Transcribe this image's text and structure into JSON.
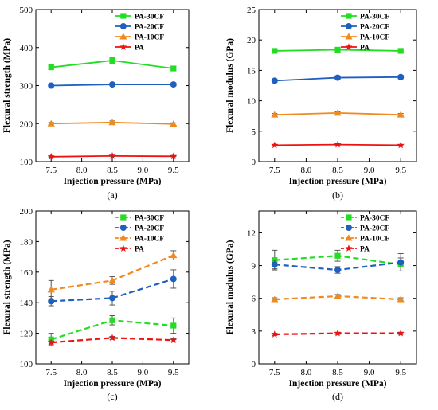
{
  "chart_data": [
    {
      "type": "line",
      "caption": "(a)",
      "xlabel": "Injection pressure (MPa)",
      "ylabel": "Flexural strength (MPa)",
      "xlim": [
        7.25,
        9.75
      ],
      "ylim": [
        100,
        500
      ],
      "xticks": [
        7.5,
        8.0,
        8.5,
        9.0,
        9.5
      ],
      "xtick_labels": [
        "7.5",
        "8.0",
        "8.5",
        "9.0",
        "9.5"
      ],
      "yticks": [
        100,
        200,
        300,
        400,
        500
      ],
      "ytick_labels": [
        "100",
        "200",
        "300",
        "400",
        "500"
      ],
      "x": [
        7.5,
        8.5,
        9.5
      ],
      "line_style": "solid",
      "legend_position": "top-right",
      "series": [
        {
          "name": "PA-30CF",
          "color": "#22dd22",
          "marker": "square",
          "values": [
            348,
            366,
            345
          ],
          "errors": [
            5,
            7,
            5
          ]
        },
        {
          "name": "PA-20CF",
          "color": "#1f5fbf",
          "marker": "circle",
          "values": [
            300,
            303,
            303
          ],
          "errors": [
            3,
            3,
            4
          ]
        },
        {
          "name": "PA-10CF",
          "color": "#f08a1f",
          "marker": "triangle",
          "values": [
            200,
            203,
            199
          ],
          "errors": [
            3,
            4,
            3
          ]
        },
        {
          "name": "PA",
          "color": "#ee1111",
          "marker": "star",
          "values": [
            113,
            115,
            114
          ],
          "errors": [
            1,
            1,
            1
          ]
        }
      ]
    },
    {
      "type": "line",
      "caption": "(b)",
      "xlabel": "Injection pressure (MPa)",
      "ylabel": "Flexural modulus (GPa)",
      "xlim": [
        7.25,
        9.75
      ],
      "ylim": [
        0,
        25
      ],
      "xticks": [
        7.5,
        8.0,
        8.5,
        9.0,
        9.5
      ],
      "xtick_labels": [
        "7.5",
        "8.0",
        "8.5",
        "9.0",
        "9.5"
      ],
      "yticks": [
        0,
        5,
        10,
        15,
        20,
        25
      ],
      "ytick_labels": [
        "0",
        "5",
        "10",
        "15",
        "20",
        "25"
      ],
      "x": [
        7.5,
        8.5,
        9.5
      ],
      "line_style": "solid",
      "legend_position": "top-right",
      "series": [
        {
          "name": "PA-30CF",
          "color": "#22dd22",
          "marker": "square",
          "values": [
            18.2,
            18.4,
            18.2
          ],
          "errors": [
            0.3,
            0.3,
            0.3
          ]
        },
        {
          "name": "PA-20CF",
          "color": "#1f5fbf",
          "marker": "circle",
          "values": [
            13.3,
            13.8,
            13.9
          ],
          "errors": [
            0.3,
            0.3,
            0.3
          ]
        },
        {
          "name": "PA-10CF",
          "color": "#f08a1f",
          "marker": "triangle",
          "values": [
            7.7,
            8.0,
            7.7
          ],
          "errors": [
            0.2,
            0.2,
            0.2
          ]
        },
        {
          "name": "PA",
          "color": "#ee1111",
          "marker": "star",
          "values": [
            2.7,
            2.8,
            2.7
          ],
          "errors": [
            0.1,
            0.1,
            0.1
          ]
        }
      ]
    },
    {
      "type": "line",
      "caption": "(c)",
      "xlabel": "Injection pressure (MPa)",
      "ylabel": "Flexural strength (MPa)",
      "xlim": [
        7.25,
        9.75
      ],
      "ylim": [
        100,
        200
      ],
      "xticks": [
        7.5,
        8.0,
        8.5,
        9.0,
        9.5
      ],
      "xtick_labels": [
        "7.5",
        "8.0",
        "8.5",
        "9.0",
        "9.5"
      ],
      "yticks": [
        100,
        120,
        140,
        160,
        180,
        200
      ],
      "ytick_labels": [
        "100",
        "120",
        "140",
        "160",
        "180",
        "200"
      ],
      "x": [
        7.5,
        8.5,
        9.5
      ],
      "line_style": "dashed",
      "legend_position": "top-right",
      "series": [
        {
          "name": "PA-30CF",
          "color": "#22dd22",
          "marker": "square",
          "values": [
            116,
            128.5,
            125
          ],
          "errors": [
            4,
            3,
            5
          ]
        },
        {
          "name": "PA-20CF",
          "color": "#1f5fbf",
          "marker": "circle",
          "values": [
            141,
            143,
            155.5
          ],
          "errors": [
            3,
            4.5,
            6
          ]
        },
        {
          "name": "PA-10CF",
          "color": "#f08a1f",
          "marker": "triangle",
          "values": [
            148.5,
            154.5,
            171
          ],
          "errors": [
            6,
            2.5,
            3
          ]
        },
        {
          "name": "PA",
          "color": "#ee1111",
          "marker": "star",
          "values": [
            114,
            117,
            115.5
          ],
          "errors": [
            1,
            1,
            1
          ]
        }
      ]
    },
    {
      "type": "line",
      "caption": "(d)",
      "xlabel": "Injection pressure (MPa)",
      "ylabel": "Flexural modulus (GPa)",
      "xlim": [
        7.25,
        9.75
      ],
      "ylim": [
        0,
        14
      ],
      "xticks": [
        7.5,
        8.0,
        8.5,
        9.0,
        9.5
      ],
      "xtick_labels": [
        "7.5",
        "8.0",
        "8.5",
        "9.0",
        "9.5"
      ],
      "yticks": [
        0,
        3,
        6,
        9,
        12
      ],
      "ytick_labels": [
        "0",
        "3",
        "6",
        "9",
        "12"
      ],
      "x": [
        7.5,
        8.5,
        9.5
      ],
      "line_style": "dashed",
      "legend_position": "top-right",
      "series": [
        {
          "name": "PA-30CF",
          "color": "#22dd22",
          "marker": "square",
          "values": [
            9.5,
            9.9,
            9.1
          ],
          "errors": [
            0.9,
            0.5,
            0.6
          ]
        },
        {
          "name": "PA-20CF",
          "color": "#1f5fbf",
          "marker": "circle",
          "values": [
            9.1,
            8.6,
            9.3
          ],
          "errors": [
            0.4,
            0.3,
            0.8
          ]
        },
        {
          "name": "PA-10CF",
          "color": "#f08a1f",
          "marker": "triangle",
          "values": [
            5.9,
            6.2,
            5.9
          ],
          "errors": [
            0.15,
            0.15,
            0.15
          ]
        },
        {
          "name": "PA",
          "color": "#ee1111",
          "marker": "star",
          "values": [
            2.7,
            2.8,
            2.8
          ],
          "errors": [
            0.1,
            0.1,
            0.1
          ]
        }
      ]
    }
  ]
}
